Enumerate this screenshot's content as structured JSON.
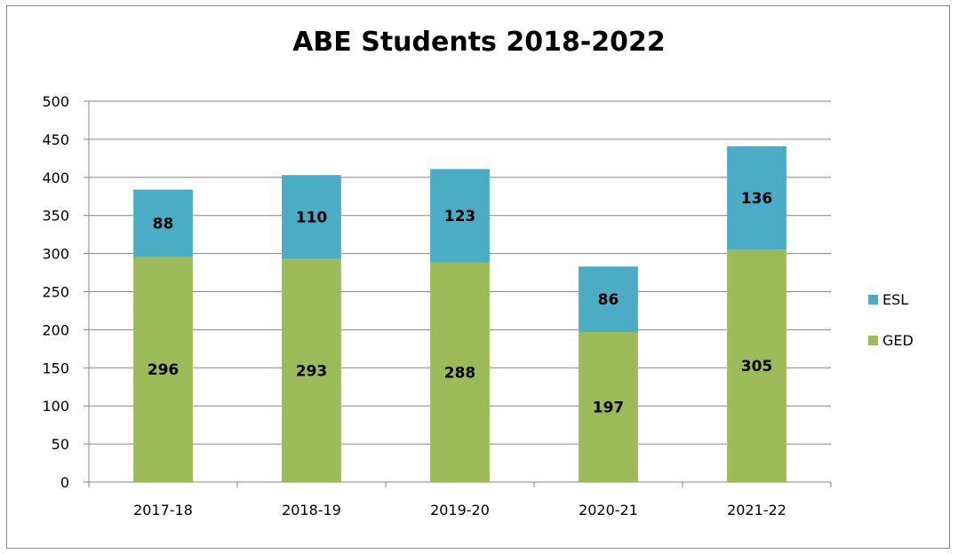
{
  "chart_data": {
    "type": "bar",
    "stacked": true,
    "title": "ABE Students 2018-2022",
    "xlabel": "",
    "ylabel": "",
    "categories": [
      "2017-18",
      "2018-19",
      "2019-20",
      "2020-21",
      "2021-22"
    ],
    "series": [
      {
        "name": "GED",
        "values": [
          296,
          293,
          288,
          197,
          305
        ],
        "color": "#9BBB59"
      },
      {
        "name": "ESL",
        "values": [
          88,
          110,
          123,
          86,
          136
        ],
        "color": "#4BACC6"
      }
    ],
    "ylim": [
      0,
      500
    ],
    "yticks": [
      0,
      50,
      100,
      150,
      200,
      250,
      300,
      350,
      400,
      450,
      500
    ],
    "grid": true,
    "data_labels": true,
    "legend_position": "right",
    "legend_order": [
      "ESL",
      "GED"
    ]
  }
}
